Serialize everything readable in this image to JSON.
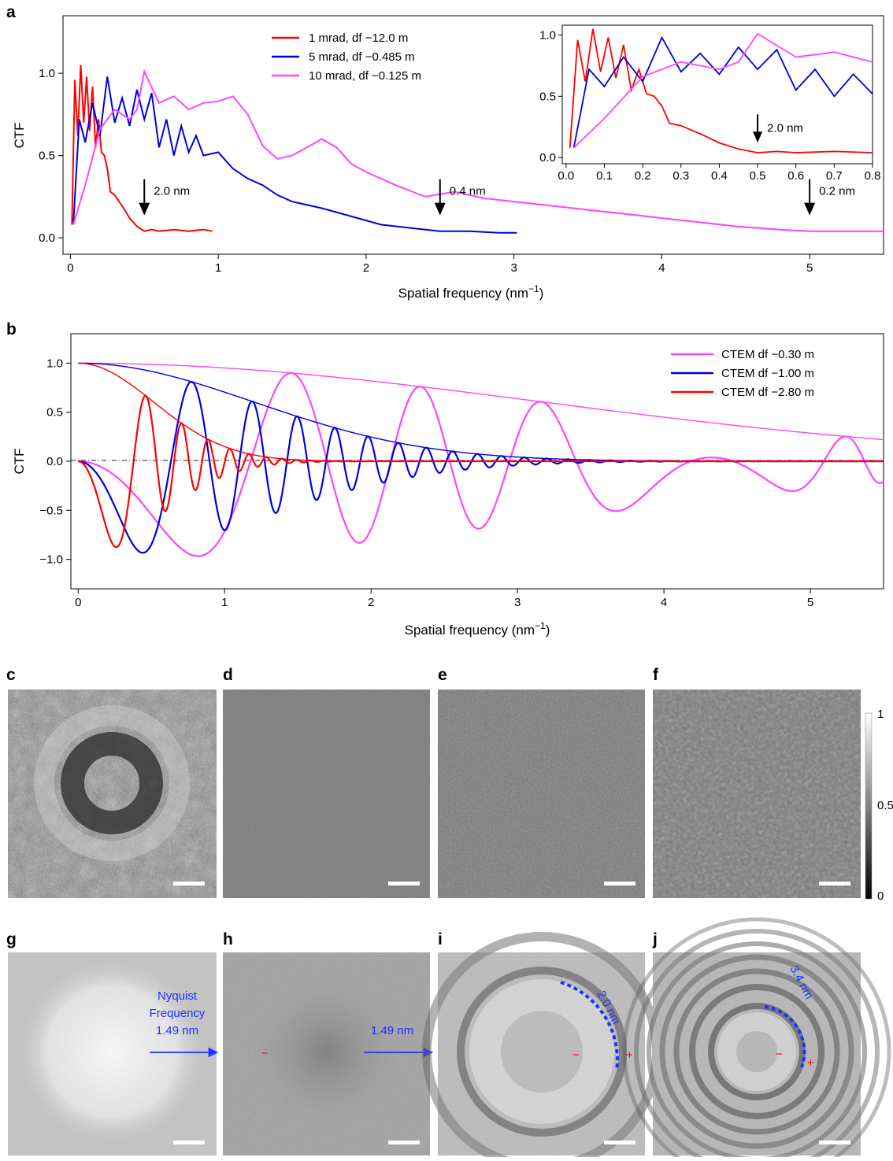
{
  "panel_labels": {
    "a": "a",
    "b": "b",
    "c": "c",
    "d": "d",
    "e": "e",
    "f": "f",
    "g": "g",
    "h": "h",
    "i": "i",
    "j": "j"
  },
  "chart_data": [
    {
      "id": "a",
      "type": "line",
      "xlabel": "Spatial frequency (nm",
      "xlabel_sup": "−1",
      "xlabel_end": ")",
      "ylabel": "CTF",
      "xlim": [
        -0.05,
        5.5
      ],
      "ylim": [
        -0.1,
        1.35
      ],
      "xticks": [
        0,
        1,
        2,
        3,
        4,
        5
      ],
      "yticks": [
        0.0,
        0.5,
        1.0
      ],
      "ytick_labels": [
        "0.0",
        "0.5",
        "1.0"
      ],
      "legend_position": "top-center",
      "series": [
        {
          "name": "1 mrad, df −12.0   m",
          "color": "#ff0000",
          "x": [
            0.01,
            0.03,
            0.05,
            0.07,
            0.09,
            0.11,
            0.13,
            0.15,
            0.17,
            0.19,
            0.21,
            0.23,
            0.25,
            0.27,
            0.3,
            0.33,
            0.36,
            0.4,
            0.45,
            0.5,
            0.55,
            0.6,
            0.7,
            0.8,
            0.9,
            0.96
          ],
          "y": [
            0.08,
            0.96,
            0.62,
            1.05,
            0.7,
            0.98,
            0.65,
            0.92,
            0.55,
            0.72,
            0.52,
            0.5,
            0.42,
            0.28,
            0.26,
            0.22,
            0.18,
            0.12,
            0.07,
            0.04,
            0.05,
            0.04,
            0.05,
            0.04,
            0.05,
            0.04
          ]
        },
        {
          "name": "5 mrad, df −0.485   m",
          "color": "#0000dd",
          "x": [
            0.02,
            0.06,
            0.1,
            0.15,
            0.2,
            0.25,
            0.3,
            0.35,
            0.4,
            0.45,
            0.5,
            0.55,
            0.6,
            0.65,
            0.7,
            0.75,
            0.8,
            0.85,
            0.9,
            1.0,
            1.1,
            1.2,
            1.3,
            1.4,
            1.5,
            1.7,
            1.9,
            2.1,
            2.3,
            2.5,
            2.7,
            2.9,
            3.02
          ],
          "y": [
            0.08,
            0.72,
            0.58,
            0.82,
            0.62,
            0.98,
            0.7,
            0.85,
            0.68,
            0.9,
            0.72,
            0.88,
            0.55,
            0.72,
            0.5,
            0.68,
            0.52,
            0.62,
            0.5,
            0.52,
            0.42,
            0.36,
            0.32,
            0.26,
            0.22,
            0.18,
            0.13,
            0.08,
            0.06,
            0.04,
            0.04,
            0.03,
            0.03
          ]
        },
        {
          "name": "10 mrad, df −0.125   m",
          "color": "#ff44ff",
          "x": [
            0.02,
            0.1,
            0.2,
            0.3,
            0.4,
            0.45,
            0.5,
            0.6,
            0.7,
            0.8,
            0.9,
            1.0,
            1.1,
            1.2,
            1.3,
            1.4,
            1.5,
            1.6,
            1.7,
            1.8,
            1.9,
            2.0,
            2.2,
            2.4,
            2.6,
            2.8,
            3.0,
            3.2,
            3.5,
            3.8,
            4.0,
            4.2,
            4.5,
            4.8,
            5.0,
            5.3,
            5.5
          ],
          "y": [
            0.08,
            0.32,
            0.66,
            0.78,
            0.72,
            0.78,
            1.01,
            0.82,
            0.86,
            0.78,
            0.82,
            0.83,
            0.86,
            0.75,
            0.56,
            0.48,
            0.5,
            0.55,
            0.6,
            0.55,
            0.45,
            0.4,
            0.32,
            0.25,
            0.28,
            0.24,
            0.22,
            0.2,
            0.17,
            0.14,
            0.12,
            0.1,
            0.07,
            0.05,
            0.04,
            0.04,
            0.04
          ]
        }
      ],
      "annotations": [
        {
          "label": "2.0 nm",
          "x": 0.5,
          "y": 0.28
        },
        {
          "label": "0.4 nm",
          "x": 2.5,
          "y": 0.28
        },
        {
          "label": "0.2 nm",
          "x": 5.0,
          "y": 0.28
        }
      ],
      "inset": {
        "xlim": [
          -0.01,
          0.8
        ],
        "ylim": [
          -0.05,
          1.08
        ],
        "xticks": [
          0.0,
          0.1,
          0.2,
          0.3,
          0.4,
          0.5,
          0.6,
          0.7,
          0.8
        ],
        "xtick_labels": [
          "0.0",
          "0.1",
          "0.2",
          "0.3",
          "0.4",
          "0.5",
          "0.6",
          "0.7",
          "0.8"
        ],
        "yticks": [
          0.0,
          0.5,
          1.0
        ],
        "ytick_labels": [
          "0.0",
          "0.5",
          "1.0"
        ],
        "annotation": {
          "label": "2.0 nm",
          "x": 0.5,
          "y": 0.25
        }
      }
    },
    {
      "id": "b",
      "type": "line",
      "xlabel": "Spatial frequency (nm",
      "xlabel_sup": "−1",
      "xlabel_end": ")",
      "ylabel": "CTF",
      "xlim": [
        -0.05,
        5.5
      ],
      "ylim": [
        -1.3,
        1.3
      ],
      "xticks": [
        0,
        1,
        2,
        3,
        4,
        5
      ],
      "yticks": [
        -1.0,
        -0.5,
        0.0,
        0.5,
        1.0
      ],
      "ytick_labels": [
        "−1.0",
        "−0.5",
        "0.0",
        "0.5",
        "1.0"
      ],
      "legend_position": "top-right",
      "series": [
        {
          "name": "CTEM df −0.30   m",
          "color": "#ff44ff",
          "df": 0.3,
          "envelope_k": 0.05
        },
        {
          "name": "CTEM df −1.00   m",
          "color": "#0000dd",
          "df": 1.0,
          "envelope_k": 0.35
        },
        {
          "name": "CTEM df −2.80   m",
          "color": "#ff0000",
          "df": 2.8,
          "envelope_k": 1.9
        }
      ]
    }
  ],
  "colorbar": {
    "max": "1",
    "mid": "0.5",
    "min": "0"
  },
  "panel_g": {
    "line1": "Nyquist",
    "line2": "Frequency",
    "line3": "1.49 nm"
  },
  "panel_h": {
    "arrow_label": "1.49 nm",
    "sign_minus": "−"
  },
  "panel_i": {
    "arc_label": "2.0 nm",
    "sign_minus": "−",
    "sign_plus": "+"
  },
  "panel_j": {
    "arc_label": "3.4 nm",
    "sign_minus": "−",
    "sign_plus": "+"
  }
}
